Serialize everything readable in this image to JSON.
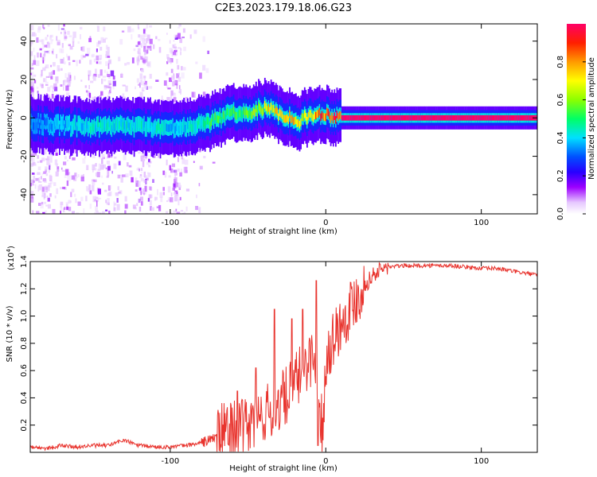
{
  "title": "C2E3.2023.179.18.06.G23",
  "chart_data": [
    {
      "type": "heatmap",
      "xlabel": "Height of straight line (km)",
      "ylabel": "Frequency (Hz)",
      "xlim": [
        -190,
        136
      ],
      "ylim": [
        -50,
        49
      ],
      "x_ticks": [
        -100,
        0,
        100
      ],
      "x_tick_labels": [
        "-100",
        "0",
        "100"
      ],
      "y_ticks": [
        -40,
        -20,
        0,
        20,
        40
      ],
      "y_tick_labels": [
        "-40",
        "-20",
        "0",
        "20",
        "40"
      ],
      "colorbar": {
        "label": "Normalized spectral amplitude",
        "range": [
          0,
          1
        ],
        "ticks": [
          0.0,
          0.2,
          0.4,
          0.6,
          0.8
        ],
        "tick_labels": [
          "0.0",
          "0.2",
          "0.4",
          "0.6",
          "0.8"
        ]
      },
      "ridge": [
        {
          "x": -190,
          "freq": -3,
          "amp": 0.35
        },
        {
          "x": -170,
          "freq": -4,
          "amp": 0.4
        },
        {
          "x": -150,
          "freq": -5,
          "amp": 0.45
        },
        {
          "x": -130,
          "freq": -4,
          "amp": 0.45
        },
        {
          "x": -110,
          "freq": -5,
          "amp": 0.45
        },
        {
          "x": -95,
          "freq": -6,
          "amp": 0.4
        },
        {
          "x": -85,
          "freq": -4,
          "amp": 0.45
        },
        {
          "x": -75,
          "freq": -2,
          "amp": 0.55
        },
        {
          "x": -65,
          "freq": 1,
          "amp": 0.55
        },
        {
          "x": -58,
          "freq": 3,
          "amp": 0.55
        },
        {
          "x": -50,
          "freq": 2,
          "amp": 0.6
        },
        {
          "x": -45,
          "freq": 4,
          "amp": 0.65
        },
        {
          "x": -40,
          "freq": 5,
          "amp": 0.75
        },
        {
          "x": -35,
          "freq": 4,
          "amp": 0.8
        },
        {
          "x": -30,
          "freq": 2,
          "amp": 0.8
        },
        {
          "x": -22,
          "freq": 0,
          "amp": 0.8
        },
        {
          "x": -18,
          "freq": -2,
          "amp": 0.75
        },
        {
          "x": -14,
          "freq": 0,
          "amp": 0.75
        },
        {
          "x": -10,
          "freq": 1,
          "amp": 0.8
        },
        {
          "x": -5,
          "freq": 2,
          "amp": 0.9
        },
        {
          "x": 0,
          "freq": 2,
          "amp": 0.9
        },
        {
          "x": 4,
          "freq": 1,
          "amp": 0.95
        },
        {
          "x": 10,
          "freq": 0,
          "amp": 1.0
        },
        {
          "x": 136,
          "freq": 0,
          "amp": 1.0
        }
      ]
    },
    {
      "type": "line",
      "xlabel": "Height of straight line (km)",
      "ylabel": "SNR (10 * v/v)",
      "y_multiplier": "(x10",
      "y_multiplier_exp": "4",
      "xlim": [
        -190,
        136
      ],
      "ylim": [
        0,
        1.4
      ],
      "x_ticks": [
        -100,
        0,
        100
      ],
      "x_tick_labels": [
        "-100",
        "0",
        "100"
      ],
      "y_ticks": [
        0.2,
        0.4,
        0.6,
        0.8,
        1.0,
        1.2,
        1.4
      ],
      "y_tick_labels": [
        "0.2",
        "0.4",
        "0.6",
        "0.8",
        "1.0",
        "1.2",
        "1.4"
      ],
      "series": [
        {
          "name": "SNR",
          "color": "#e8332d",
          "x": [
            -190,
            -180,
            -170,
            -160,
            -150,
            -140,
            -130,
            -120,
            -110,
            -100,
            -90,
            -80,
            -75,
            -70,
            -65,
            -60,
            -55,
            -50,
            -45,
            -40,
            -35,
            -30,
            -25,
            -20,
            -15,
            -10,
            -5,
            -2,
            0,
            5,
            10,
            15,
            20,
            25,
            30,
            35,
            40,
            50,
            60,
            70,
            80,
            90,
            100,
            110,
            120,
            136
          ],
          "values": [
            0.04,
            0.03,
            0.05,
            0.04,
            0.05,
            0.05,
            0.09,
            0.05,
            0.04,
            0.04,
            0.05,
            0.07,
            0.09,
            0.12,
            0.16,
            0.18,
            0.16,
            0.2,
            0.22,
            0.28,
            0.3,
            0.36,
            0.42,
            0.5,
            0.6,
            0.7,
            0.6,
            0.1,
            0.7,
            0.85,
            0.95,
            1.05,
            1.15,
            1.22,
            1.3,
            1.34,
            1.36,
            1.37,
            1.37,
            1.37,
            1.37,
            1.36,
            1.35,
            1.35,
            1.33,
            1.3
          ],
          "spikes": [
            {
              "x": -57,
              "value": 0.45
            },
            {
              "x": -45,
              "value": 0.62
            },
            {
              "x": -33,
              "value": 1.05
            },
            {
              "x": -22,
              "value": 0.98
            },
            {
              "x": -15,
              "value": 1.05
            },
            {
              "x": -6,
              "value": 1.26
            },
            {
              "x": -5,
              "value": 0.05
            }
          ]
        }
      ]
    }
  ]
}
